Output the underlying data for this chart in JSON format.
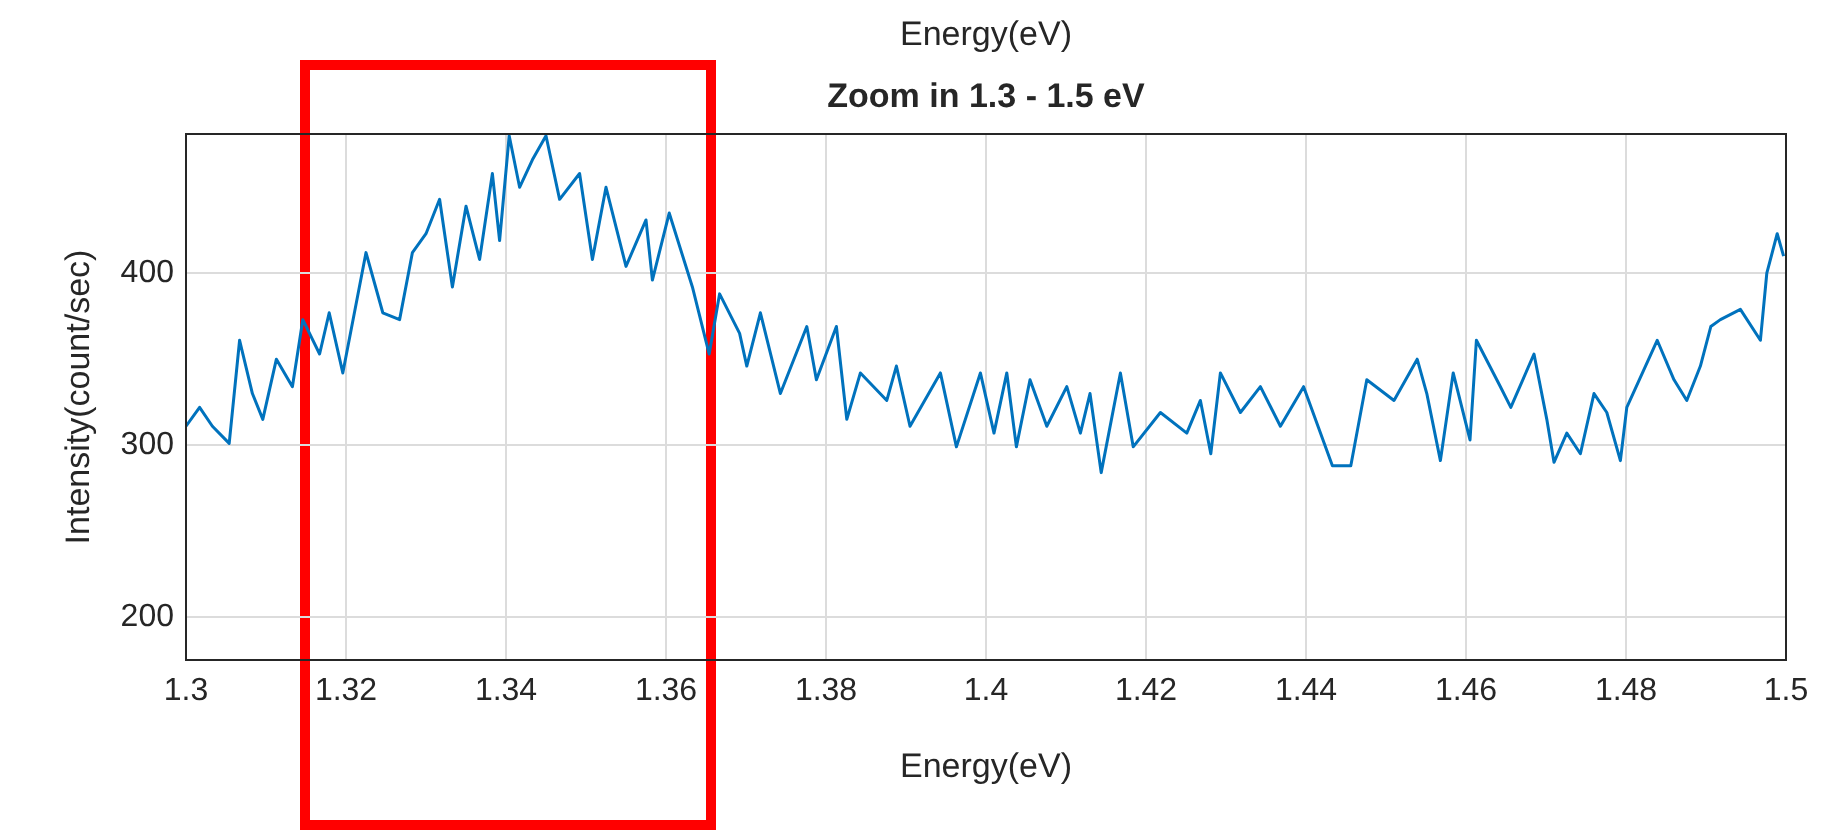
{
  "chart_data": {
    "type": "line",
    "title": "Zoom in 1.3 - 1.5 eV",
    "xlabel": "Energy(eV)",
    "ylabel": "Intensity(count/sec)",
    "annotations": [
      "Energy(eV)"
    ],
    "series": [
      {
        "color": "#0072bd",
        "x": [
          1.3,
          1.3017,
          1.3033,
          1.3054,
          1.3067,
          1.3083,
          1.3096,
          1.3113,
          1.3133,
          1.3146,
          1.3167,
          1.3179,
          1.3196,
          1.3225,
          1.3246,
          1.3267,
          1.3283,
          1.33,
          1.3317,
          1.3333,
          1.335,
          1.3367,
          1.3383,
          1.3392,
          1.3404,
          1.3417,
          1.3433,
          1.345,
          1.3467,
          1.3492,
          1.3508,
          1.3525,
          1.355,
          1.3575,
          1.3583,
          1.3604,
          1.3633,
          1.3654,
          1.3667,
          1.3692,
          1.3701,
          1.3718,
          1.3743,
          1.3776,
          1.3788,
          1.3813,
          1.3826,
          1.3843,
          1.3876,
          1.3888,
          1.3905,
          1.3943,
          1.3963,
          1.3993,
          1.401,
          1.4026,
          1.4038,
          1.4055,
          1.4076,
          1.4101,
          1.4118,
          1.413,
          1.4144,
          1.4168,
          1.4184,
          1.4218,
          1.4251,
          1.4268,
          1.4281,
          1.4293,
          1.4318,
          1.4343,
          1.4368,
          1.4397,
          1.4433,
          1.4456,
          1.4476,
          1.451,
          1.4539,
          1.4551,
          1.4568,
          1.4584,
          1.4605,
          1.4613,
          1.4643,
          1.4656,
          1.4685,
          1.4701,
          1.471,
          1.4726,
          1.4743,
          1.476,
          1.4776,
          1.4793,
          1.4801,
          1.4839,
          1.486,
          1.4876,
          1.4893,
          1.4906,
          1.4918,
          1.4943,
          1.4968,
          1.4976,
          1.4989,
          1.4997
        ],
        "values": [
          311,
          322,
          311,
          301,
          361,
          330,
          315,
          350,
          334,
          373,
          353,
          377,
          342,
          412,
          377,
          373,
          412,
          423,
          443,
          392,
          439,
          408,
          458,
          419,
          480,
          450,
          466,
          480,
          443,
          458,
          408,
          450,
          404,
          431,
          396,
          435,
          392,
          353,
          388,
          365,
          346,
          377,
          330,
          369,
          338,
          369,
          315,
          342,
          326,
          346,
          311,
          342,
          299,
          342,
          307,
          342,
          299,
          338,
          311,
          334,
          307,
          330,
          284,
          342,
          299,
          319,
          307,
          326,
          295,
          342,
          319,
          334,
          311,
          334,
          288,
          288,
          338,
          326,
          350,
          330,
          291,
          342,
          303,
          361,
          334,
          322,
          353,
          315,
          290,
          307,
          295,
          330,
          319,
          291,
          322,
          361,
          338,
          326,
          346,
          369,
          373,
          379,
          361,
          400,
          423,
          410
        ]
      }
    ],
    "xlim": [
      1.3,
      1.5
    ],
    "xticks": [
      1.3,
      1.32,
      1.34,
      1.36,
      1.38,
      1.4,
      1.42,
      1.44,
      1.46,
      1.48,
      1.5
    ],
    "ylim": [
      175,
      481
    ],
    "yticks": [
      200,
      300,
      400
    ],
    "grid": true,
    "legend": false,
    "marker": "none",
    "line_style": "solid"
  }
}
